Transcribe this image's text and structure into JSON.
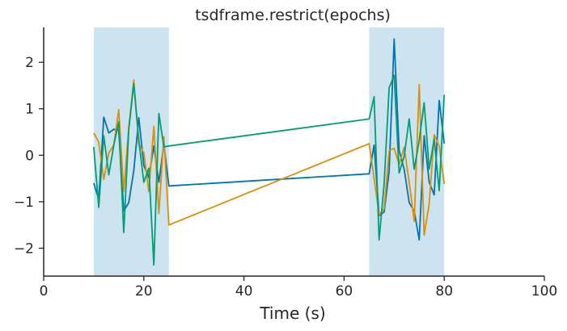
{
  "chart_data": {
    "type": "line",
    "title": "tsdframe.restrict(epochs)",
    "xlabel": "Time (s)",
    "ylabel": "",
    "xlim": [
      0,
      100
    ],
    "ylim": [
      -2.6,
      2.75
    ],
    "xticks": [
      0,
      20,
      40,
      60,
      80,
      100
    ],
    "yticks": [
      -2,
      -1,
      0,
      1,
      2
    ],
    "grid": false,
    "legend": "none",
    "epochs": [
      {
        "start": 10,
        "end": 25
      },
      {
        "start": 65,
        "end": 80
      }
    ],
    "x": [
      10,
      11,
      12,
      13,
      14,
      15,
      16,
      17,
      18,
      19,
      20,
      21,
      22,
      23,
      24,
      25,
      65,
      66,
      67,
      68,
      69,
      70,
      71,
      72,
      73,
      74,
      75,
      76,
      77,
      78,
      79,
      80
    ],
    "series": [
      {
        "color": "#0173b2",
        "values": [
          -0.6,
          -0.95,
          0.82,
          0.48,
          0.56,
          0.53,
          -1.2,
          -1.02,
          -0.33,
          0.81,
          -0.22,
          -0.48,
          0.2,
          -0.58,
          0.24,
          -0.66,
          -0.4,
          0.22,
          -1.3,
          -1.22,
          -0.35,
          2.5,
          0.1,
          -0.3,
          -1.02,
          -1.2,
          -1.82,
          0.42,
          -0.58,
          -0.85,
          1.18,
          0.25
        ]
      },
      {
        "color": "#de8f05",
        "values": [
          0.48,
          0.28,
          -0.52,
          0.05,
          0.22,
          0.98,
          -0.78,
          0.6,
          1.62,
          0.23,
          0.06,
          -0.78,
          0.62,
          -1.25,
          0.4,
          -1.5,
          0.25,
          -0.5,
          -1.28,
          -1.15,
          0.1,
          0.15,
          -0.2,
          0.17,
          -0.58,
          -1.42,
          1.52,
          -1.72,
          -1.05,
          0.44,
          0.2,
          -0.62
        ]
      },
      {
        "color": "#029e73",
        "values": [
          0.18,
          -1.12,
          0.42,
          -0.42,
          0.22,
          0.72,
          -1.66,
          0.55,
          1.54,
          0.32,
          -0.58,
          -0.28,
          -2.36,
          0.9,
          0.18,
          0.2,
          0.78,
          1.26,
          -1.82,
          -0.62,
          1.45,
          1.72,
          -0.38,
          -0.02,
          0.78,
          -0.3,
          0.32,
          1.13,
          -0.3,
          0.35,
          -0.76,
          1.3
        ]
      }
    ],
    "colors": {
      "epoch_fill": "#cde3ef",
      "axis": "#262626"
    }
  }
}
